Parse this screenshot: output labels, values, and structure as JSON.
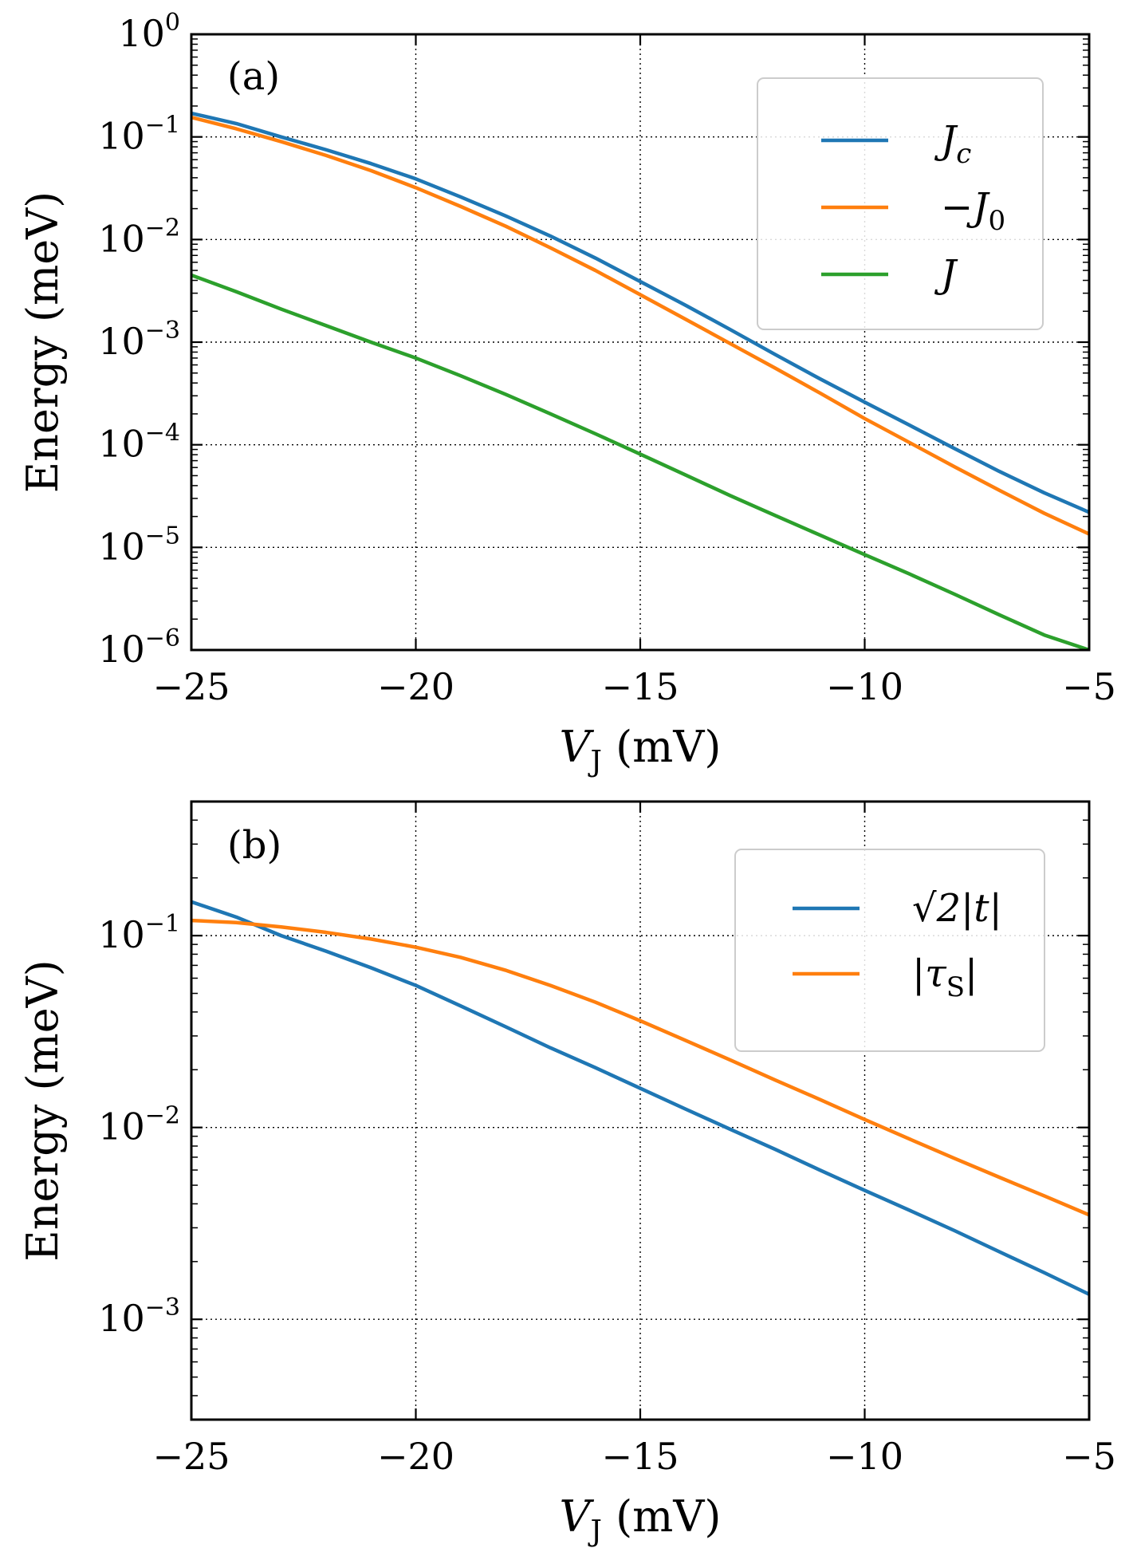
{
  "chart_data": [
    {
      "type": "line",
      "panel_label": "(a)",
      "xlabel": "V_J (mV)",
      "xlabel_main": "V",
      "xlabel_sub": "J",
      "xlabel_unit": "(mV)",
      "ylabel": "Energy (meV)",
      "xlim": [
        -25,
        -5
      ],
      "ylim": [
        1e-06,
        1
      ],
      "yscale": "log",
      "x_ticks": [
        -25,
        -20,
        -15,
        -10,
        -5
      ],
      "x_tick_labels": [
        "−25",
        "−20",
        "−15",
        "−10",
        "−5"
      ],
      "y_ticks": [
        1e-06,
        1e-05,
        0.0001,
        0.001,
        0.01,
        0.1,
        1
      ],
      "y_tick_exponents": [
        "−6",
        "−5",
        "−4",
        "−3",
        "−2",
        "−1",
        "0"
      ],
      "y_tick_base": "10",
      "grid": true,
      "legend_position": "top-right",
      "x": [
        -25,
        -24,
        -23,
        -22,
        -21,
        -20,
        -19,
        -18,
        -17,
        -16,
        -15,
        -14,
        -13,
        -12,
        -11,
        -10,
        -9,
        -8,
        -7,
        -6,
        -5
      ],
      "series": [
        {
          "name": "J_c",
          "legend_main": "J",
          "legend_sub": "c",
          "legend_prefix": "",
          "color": "#1f77b4",
          "values": [
            0.17,
            0.135,
            0.1,
            0.075,
            0.055,
            0.039,
            0.026,
            0.017,
            0.0108,
            0.0066,
            0.0039,
            0.0023,
            0.00133,
            0.00076,
            0.00044,
            0.00026,
            0.000155,
            9.2e-05,
            5.5e-05,
            3.4e-05,
            2.2e-05
          ]
        },
        {
          "name": "−J_0",
          "legend_main": "J",
          "legend_sub": "0",
          "legend_prefix": "−",
          "color": "#ff7f0e",
          "values": [
            0.155,
            0.12,
            0.09,
            0.066,
            0.047,
            0.032,
            0.021,
            0.0135,
            0.0083,
            0.005,
            0.0029,
            0.00168,
            0.00097,
            0.00056,
            0.00032,
            0.00018,
            0.000105,
            6.1e-05,
            3.6e-05,
            2.15e-05,
            1.35e-05
          ]
        },
        {
          "name": "J",
          "legend_main": "J",
          "legend_sub": "",
          "legend_prefix": "",
          "color": "#2ca02c",
          "values": [
            0.0045,
            0.0031,
            0.0021,
            0.00145,
            0.001,
            0.0007,
            0.00047,
            0.00031,
            0.0002,
            0.000128,
            8.1e-05,
            5.1e-05,
            3.2e-05,
            2.05e-05,
            1.32e-05,
            8.5e-06,
            5.5e-06,
            3.5e-06,
            2.2e-06,
            1.4e-06,
            1e-06
          ]
        }
      ]
    },
    {
      "type": "line",
      "panel_label": "(b)",
      "xlabel": "V_J (mV)",
      "xlabel_main": "V",
      "xlabel_sub": "J",
      "xlabel_unit": "(mV)",
      "ylabel": "Energy (meV)",
      "xlim": [
        -25,
        -5
      ],
      "ylim": [
        0.0003,
        0.5
      ],
      "yscale": "log",
      "x_ticks": [
        -25,
        -20,
        -15,
        -10,
        -5
      ],
      "x_tick_labels": [
        "−25",
        "−20",
        "−15",
        "−10",
        "−5"
      ],
      "y_ticks": [
        0.001,
        0.01,
        0.1
      ],
      "y_tick_exponents": [
        "−3",
        "−2",
        "−1"
      ],
      "y_tick_base": "10",
      "grid": true,
      "legend_position": "top-right",
      "x": [
        -25,
        -24,
        -23,
        -22,
        -21,
        -20,
        -19,
        -18,
        -17,
        -16,
        -15,
        -14,
        -13,
        -12,
        -11,
        -10,
        -9,
        -8,
        -7,
        -6,
        -5
      ],
      "series": [
        {
          "name": "√2|t|",
          "legend_text": "√2|t|",
          "color": "#1f77b4",
          "values": [
            0.15,
            0.125,
            0.1,
            0.083,
            0.068,
            0.055,
            0.043,
            0.0335,
            0.026,
            0.0205,
            0.016,
            0.0125,
            0.0098,
            0.0077,
            0.006,
            0.0047,
            0.0037,
            0.0029,
            0.00225,
            0.00175,
            0.00135
          ]
        },
        {
          "name": "|τ_S|",
          "legend_text": "|τ",
          "legend_sub": "S",
          "legend_suffix": "|",
          "color": "#ff7f0e",
          "values": [
            0.12,
            0.117,
            0.111,
            0.104,
            0.096,
            0.087,
            0.077,
            0.066,
            0.055,
            0.045,
            0.036,
            0.0285,
            0.0225,
            0.0177,
            0.014,
            0.011,
            0.0087,
            0.0069,
            0.0055,
            0.0044,
            0.0035
          ]
        }
      ]
    }
  ]
}
